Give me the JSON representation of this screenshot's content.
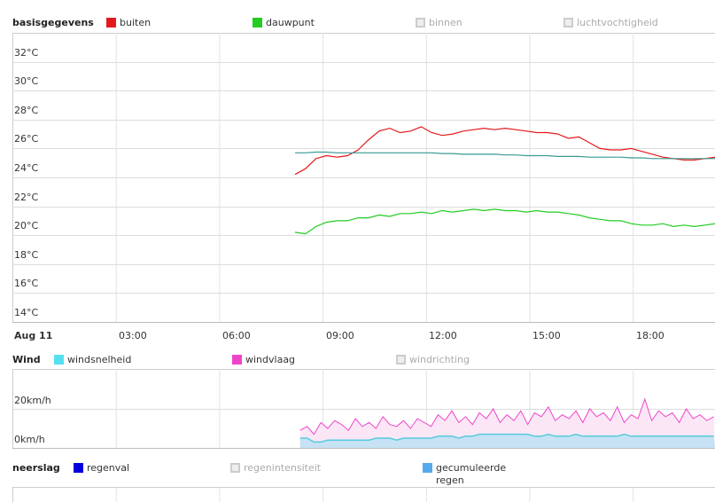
{
  "temp_legend": {
    "title": "basisgegevens",
    "items": [
      {
        "label": "buiten",
        "color": "#e31a1c",
        "enabled": true
      },
      {
        "label": "dauwpunt",
        "color": "#22cc22",
        "enabled": true
      },
      {
        "label": "binnen",
        "enabled": false
      },
      {
        "label": "luchtvochtigheid",
        "enabled": false
      }
    ]
  },
  "wind_legend": {
    "title": "Wind",
    "items": [
      {
        "label": "windsnelheid",
        "color": "#55ddee",
        "enabled": true
      },
      {
        "label": "windvlaag",
        "color": "#ee44cc",
        "enabled": true
      },
      {
        "label": "windrichting",
        "enabled": false
      }
    ]
  },
  "rain_legend": {
    "title": "neerslag",
    "items": [
      {
        "label": "regenval",
        "color": "#0000dd",
        "enabled": true
      },
      {
        "label": "regenintensiteit",
        "enabled": false
      },
      {
        "label": "gecumuleerde regen",
        "color": "#55aaee",
        "enabled": true
      }
    ]
  },
  "x_axis": {
    "date_label": "Aug 11",
    "ticks": [
      "03:00",
      "06:00",
      "09:00",
      "12:00",
      "15:00",
      "18:00"
    ]
  },
  "chart_data": [
    {
      "type": "line",
      "title": "basisgegevens",
      "ylabel": "°C",
      "ylim": [
        14,
        34
      ],
      "xlim_hours": [
        0,
        20.4
      ],
      "y_ticks": [
        "14°C",
        "16°C",
        "18°C",
        "20°C",
        "22°C",
        "24°C",
        "26°C",
        "28°C",
        "30°C",
        "32°C"
      ],
      "x_start_hour": 8.2,
      "x_step_hours": 0.305,
      "series": [
        {
          "name": "buiten",
          "color": "#e31a1c",
          "values": [
            24.2,
            24.6,
            25.3,
            25.5,
            25.4,
            25.5,
            25.9,
            26.6,
            27.2,
            27.4,
            27.1,
            27.2,
            27.5,
            27.1,
            26.9,
            27.0,
            27.2,
            27.3,
            27.4,
            27.3,
            27.4,
            27.3,
            27.2,
            27.1,
            27.1,
            27.0,
            26.7,
            26.8,
            26.4,
            26.0,
            25.9,
            25.9,
            26.0,
            25.8,
            25.6,
            25.4,
            25.3,
            25.2,
            25.2,
            25.3,
            25.4
          ]
        },
        {
          "name": "binnen",
          "color": "#3a9a94",
          "values": [
            25.7,
            25.7,
            25.75,
            25.75,
            25.7,
            25.7,
            25.7,
            25.7,
            25.7,
            25.7,
            25.7,
            25.7,
            25.7,
            25.7,
            25.65,
            25.65,
            25.6,
            25.6,
            25.6,
            25.6,
            25.55,
            25.55,
            25.5,
            25.5,
            25.5,
            25.45,
            25.45,
            25.45,
            25.4,
            25.4,
            25.4,
            25.4,
            25.35,
            25.35,
            25.3,
            25.3,
            25.3,
            25.3,
            25.3,
            25.3,
            25.3
          ]
        },
        {
          "name": "dauwpunt",
          "color": "#22cc22",
          "values": [
            20.2,
            20.1,
            20.6,
            20.9,
            21.0,
            21.0,
            21.2,
            21.2,
            21.4,
            21.3,
            21.5,
            21.5,
            21.6,
            21.5,
            21.7,
            21.6,
            21.7,
            21.8,
            21.7,
            21.8,
            21.7,
            21.7,
            21.6,
            21.7,
            21.6,
            21.6,
            21.5,
            21.4,
            21.2,
            21.1,
            21.0,
            21.0,
            20.8,
            20.7,
            20.7,
            20.8,
            20.6,
            20.7,
            20.6,
            20.7,
            20.8
          ]
        }
      ]
    },
    {
      "type": "area",
      "title": "Wind",
      "ylim": [
        0,
        40
      ],
      "y_ticks": [
        "0km/h",
        "20km/h"
      ],
      "x_start_hour": 8.35,
      "x_step_hours": 0.2,
      "series": [
        {
          "name": "windsnelheid",
          "color": "#55ccdd",
          "values": [
            5,
            5,
            3,
            3,
            4,
            4,
            4,
            4,
            4,
            4,
            4,
            5,
            5,
            5,
            4,
            5,
            5,
            5,
            5,
            5,
            6,
            6,
            6,
            5,
            6,
            6,
            7,
            7,
            7,
            7,
            7,
            7,
            7,
            7,
            6,
            6,
            7,
            6,
            6,
            6,
            7,
            6,
            6,
            6,
            6,
            6,
            6,
            7,
            6,
            6,
            6,
            6,
            6,
            6,
            6,
            6,
            6,
            6,
            6,
            6,
            6
          ]
        },
        {
          "name": "windvlaag",
          "color": "#ee44cc",
          "values": [
            9,
            11,
            7,
            13,
            10,
            14,
            12,
            9,
            15,
            11,
            13,
            10,
            16,
            12,
            11,
            14,
            10,
            15,
            13,
            11,
            17,
            14,
            19,
            13,
            16,
            12,
            18,
            15,
            20,
            13,
            17,
            14,
            19,
            12,
            18,
            16,
            21,
            14,
            17,
            15,
            19,
            13,
            20,
            16,
            18,
            14,
            21,
            13,
            17,
            15,
            25,
            14,
            19,
            16,
            18,
            13,
            20,
            15,
            17,
            14,
            16
          ]
        }
      ]
    }
  ]
}
